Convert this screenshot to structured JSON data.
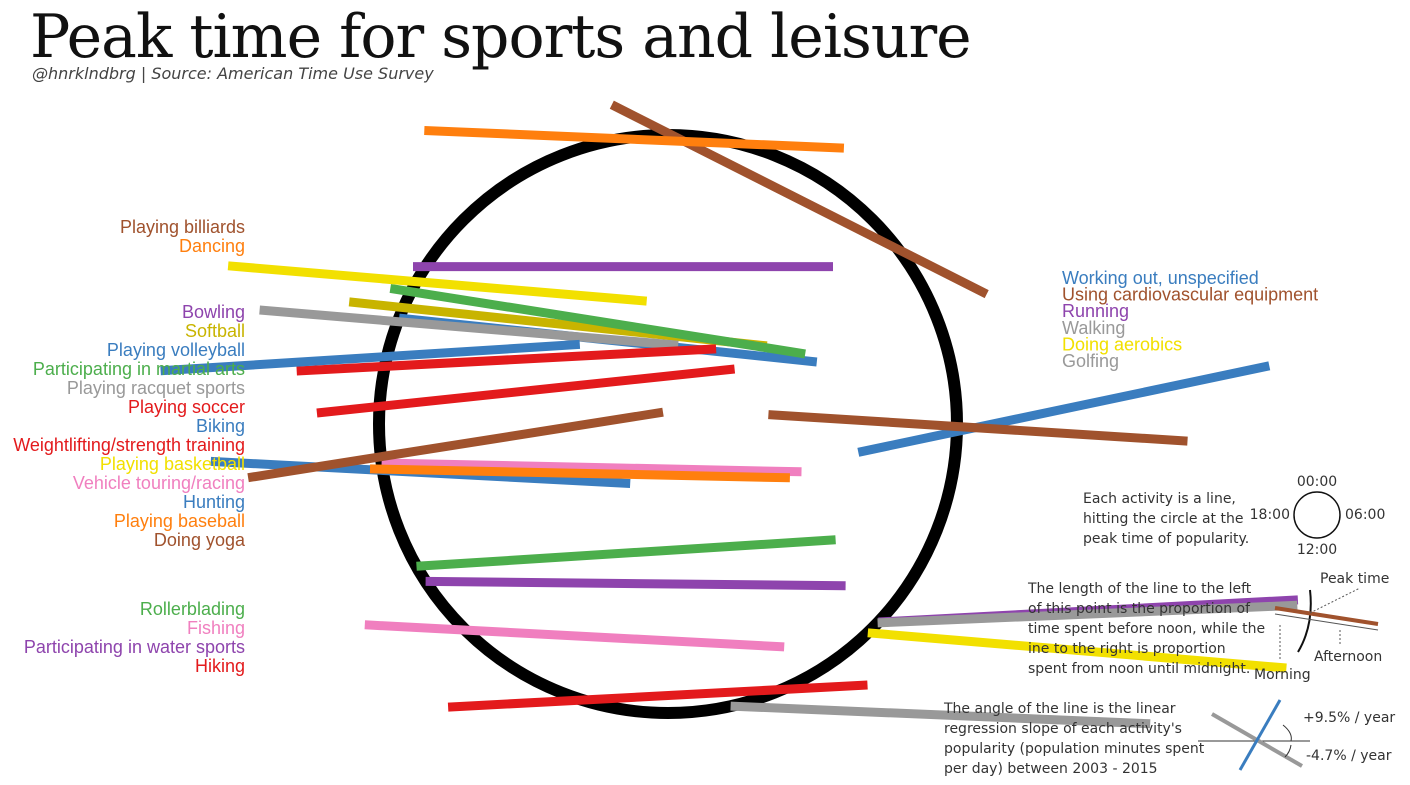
{
  "header": {
    "title": "Peak time for sports and leisure",
    "subtitle": "@hnrklndbrg | Source: American Time Use Survey"
  },
  "palette": {
    "brown": "#a0522d",
    "orange": "#ff7f0e",
    "purple": "#8e44ad",
    "yellow": "#f2e000",
    "blue": "#3a7dbf",
    "green": "#4cae4c",
    "gray": "#999999",
    "red": "#e31a1c",
    "pink": "#f07fbf",
    "olive": "#c8b400",
    "circle": "#000000"
  },
  "chart_data": {
    "type": "radial",
    "description_text": "Each activity is a line, hitting the circle at the peak time of popularity.",
    "clock_labels": {
      "top": "00:00",
      "right": "06:00",
      "bottom": "12:00",
      "left": "18:00"
    },
    "activities": [
      {
        "name": "Playing billiards",
        "color": "brown",
        "peak": "00:03",
        "before_noon": 0.16,
        "slope_pct_per_year": -4.8
      },
      {
        "name": "Dancing",
        "color": "orange",
        "peak": "23:23",
        "before_noon": 0.47,
        "slope_pct_per_year": -0.4
      },
      {
        "name": "Bowling",
        "color": "purple",
        "peak": "20:12",
        "before_noon": 0.03,
        "slope_pct_per_year": 0.0
      },
      {
        "name": "Softball",
        "color": "olive",
        "peak": "19:35",
        "before_noon": 0.13,
        "slope_pct_per_year": -1.0
      },
      {
        "name": "Playing volleyball",
        "color": "blue",
        "peak": "19:26",
        "before_noon": 0.0,
        "slope_pct_per_year": -1.0
      },
      {
        "name": "Participating in martial arts",
        "color": "green",
        "peak": "19:49",
        "before_noon": 0.05,
        "slope_pct_per_year": -1.5
      },
      {
        "name": "Playing racquet sports",
        "color": "gray",
        "peak": "19:23",
        "before_noon": 0.33,
        "slope_pct_per_year": -0.8
      },
      {
        "name": "Playing soccer",
        "color": "red",
        "peak": "18:46",
        "before_noon": 0.21,
        "slope_pct_per_year": 0.5
      },
      {
        "name": "Biking",
        "color": "blue",
        "peak": "18:54",
        "before_noon": 0.54,
        "slope_pct_per_year": 0.6
      },
      {
        "name": "Weightlifting/strength training",
        "color": "red",
        "peak": "18:14",
        "before_noon": 0.15,
        "slope_pct_per_year": 1.0
      },
      {
        "name": "Playing basketball",
        "color": "yellow",
        "peak": "19:58",
        "before_noon": 0.45,
        "slope_pct_per_year": -0.8
      },
      {
        "name": "Vehicle touring/racing",
        "color": "pink",
        "peak": "17:29",
        "before_noon": 0.0,
        "slope_pct_per_year": -0.2
      },
      {
        "name": "Hunting",
        "color": "blue",
        "peak": "17:23",
        "before_noon": 0.41,
        "slope_pct_per_year": -0.5
      },
      {
        "name": "Playing baseball",
        "color": "orange",
        "peak": "17:24",
        "before_noon": 0.03,
        "slope_pct_per_year": -0.2
      },
      {
        "name": "Doing yoga",
        "color": "brown",
        "peak": "17:34",
        "before_noon": 0.32,
        "slope_pct_per_year": 1.5
      },
      {
        "name": "Rollerblading",
        "color": "green",
        "peak": "16:02",
        "before_noon": 0.0,
        "slope_pct_per_year": 0.6
      },
      {
        "name": "Fishing",
        "color": "pink",
        "peak": "14:58",
        "before_noon": 0.24,
        "slope_pct_per_year": -0.5
      },
      {
        "name": "Participating in water sports",
        "color": "purple",
        "peak": "15:48",
        "before_noon": 0.0,
        "slope_pct_per_year": -0.1
      },
      {
        "name": "Hiking",
        "color": "red",
        "peak": "13:09",
        "before_noon": 0.32,
        "slope_pct_per_year": 0.5
      },
      {
        "name": "Working out, unspecified",
        "color": "blue",
        "peak": "06:06",
        "before_noon": 0.24,
        "slope_pct_per_year": 2.0
      },
      {
        "name": "Using cardiovascular equipment",
        "color": "brown",
        "peak": "06:02",
        "before_noon": 0.45,
        "slope_pct_per_year": -0.6
      },
      {
        "name": "Running",
        "color": "purple",
        "peak": "08:53",
        "before_noon": 0.0,
        "slope_pct_per_year": 0.5
      },
      {
        "name": "Walking",
        "color": "gray",
        "peak": "08:54",
        "before_noon": 0.0,
        "slope_pct_per_year": 0.4
      },
      {
        "name": "Doing aerobics",
        "color": "yellow",
        "peak": "09:05",
        "before_noon": 0.0,
        "slope_pct_per_year": -0.8
      },
      {
        "name": "Golfing",
        "color": "gray",
        "peak": "11:10",
        "before_noon": 0.0,
        "slope_pct_per_year": -0.4
      }
    ]
  },
  "legend": {
    "evening_group_1": [
      "Playing billiards",
      "Dancing"
    ],
    "evening_group_2": [
      "Bowling",
      "Softball",
      "Playing volleyball",
      "Participating in martial arts",
      "Playing racquet sports",
      "Playing soccer",
      "Biking",
      "Weightlifting/strength training",
      "Playing basketball",
      "Vehicle touring/racing",
      "Hunting",
      "Playing baseball",
      "Doing yoga"
    ],
    "afternoon_group": [
      "Rollerblading",
      "Fishing",
      "Participating in water sports",
      "Hiking"
    ],
    "morning_group": [
      "Working out, unspecified",
      "Using cardiovascular equipment",
      "Running",
      "Walking",
      "Doing aerobics",
      "Golfing"
    ]
  },
  "notes": {
    "activity_lines": [
      "Each activity is a line,",
      "hitting the circle at the",
      "peak time of popularity."
    ],
    "length_lines": [
      "The length of the line to the left",
      "of this point is the proportion of",
      "time spent before noon, while the",
      "ine to the right is proportion",
      "spent from noon until midnight."
    ],
    "angle_lines": [
      "The angle of the line is the linear",
      "regression slope of each activity's",
      "popularity (population minutes spent",
      "per day) between 2003 - 2015"
    ],
    "peak_time": "Peak time",
    "morning": "Morning",
    "afternoon": "Afternoon",
    "plus_slope": "+9.5% / year",
    "minus_slope": "-4.7% / year"
  }
}
